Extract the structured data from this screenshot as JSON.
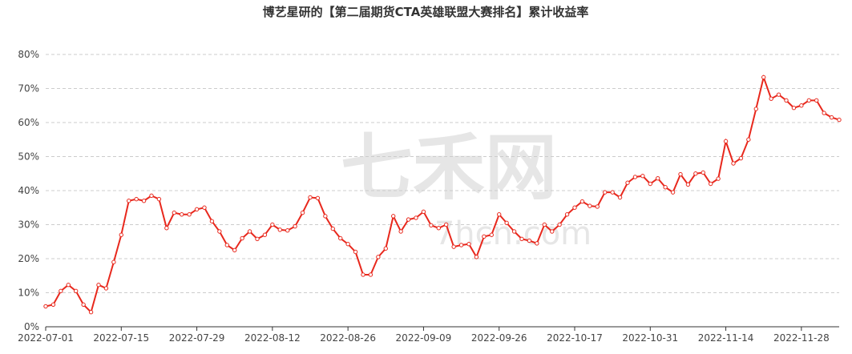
{
  "chart_data": {
    "type": "line",
    "title": "博艺星研的【第二届期货CTA英雄联盟大赛排名】累计收益率",
    "watermark": "七禾网",
    "watermark_url": "7hcn.com",
    "categories": [
      "2022-07-01",
      null,
      null,
      null,
      null,
      null,
      null,
      null,
      null,
      null,
      "2022-07-15",
      null,
      null,
      null,
      null,
      null,
      null,
      null,
      null,
      null,
      "2022-07-29",
      null,
      null,
      null,
      null,
      null,
      null,
      null,
      null,
      null,
      "2022-08-12",
      null,
      null,
      null,
      null,
      null,
      null,
      null,
      null,
      null,
      "2022-08-26",
      null,
      null,
      null,
      null,
      null,
      null,
      null,
      null,
      null,
      "2022-09-09",
      null,
      null,
      null,
      null,
      null,
      null,
      null,
      null,
      null,
      "2022-09-26",
      null,
      null,
      null,
      null,
      null,
      null,
      null,
      null,
      null,
      "2022-10-17",
      null,
      null,
      null,
      null,
      null,
      null,
      null,
      null,
      null,
      "2022-10-31",
      null,
      null,
      null,
      null,
      null,
      null,
      null,
      null,
      null,
      "2022-11-14",
      null,
      null,
      null,
      null,
      null,
      null,
      null,
      null,
      null,
      "2022-11-28",
      null,
      null,
      null,
      null,
      null
    ],
    "series": [
      {
        "name": "累计收益率",
        "color": "#e8281d",
        "values": [
          6,
          6.5,
          10.5,
          12.3,
          10.5,
          6.5,
          4.3,
          12.3,
          11.3,
          19,
          27,
          37,
          37.5,
          37,
          38.5,
          37.5,
          29,
          33.5,
          33,
          33,
          34.5,
          35,
          31,
          28,
          24,
          22.5,
          26,
          28,
          25.8,
          27,
          30,
          28.5,
          28.3,
          29.5,
          33.5,
          38,
          37.8,
          32.5,
          28.8,
          26,
          24.3,
          22,
          15.3,
          15.3,
          20.5,
          23,
          32.5,
          28,
          31.5,
          32,
          33.8,
          29.8,
          29,
          30,
          23.5,
          24,
          24.3,
          20.5,
          26.5,
          27,
          33,
          30.5,
          28,
          25.8,
          25.3,
          24.5,
          30,
          28,
          30,
          33,
          35,
          36.8,
          35.5,
          35.3,
          39.5,
          39.5,
          38,
          42.3,
          44,
          44.3,
          42,
          43.6,
          41,
          39.5,
          44.8,
          41.8,
          45,
          45.3,
          42,
          43.5,
          54.5,
          48,
          49.5,
          55,
          64,
          73.3,
          67,
          68.2,
          66.5,
          64.3,
          65,
          66.5,
          66.5,
          62.8,
          61.5,
          60.8
        ]
      }
    ],
    "ylim": [
      0,
      80
    ],
    "yticks": [
      {
        "value": 0,
        "label": "0%"
      },
      {
        "value": 10,
        "label": "10%"
      },
      {
        "value": 20,
        "label": "20%"
      },
      {
        "value": 30,
        "label": "30%"
      },
      {
        "value": 40,
        "label": "40%"
      },
      {
        "value": 50,
        "label": "50%"
      },
      {
        "value": 60,
        "label": "60%"
      },
      {
        "value": 70,
        "label": "70%"
      },
      {
        "value": 80,
        "label": "80%"
      }
    ],
    "grid": true
  }
}
